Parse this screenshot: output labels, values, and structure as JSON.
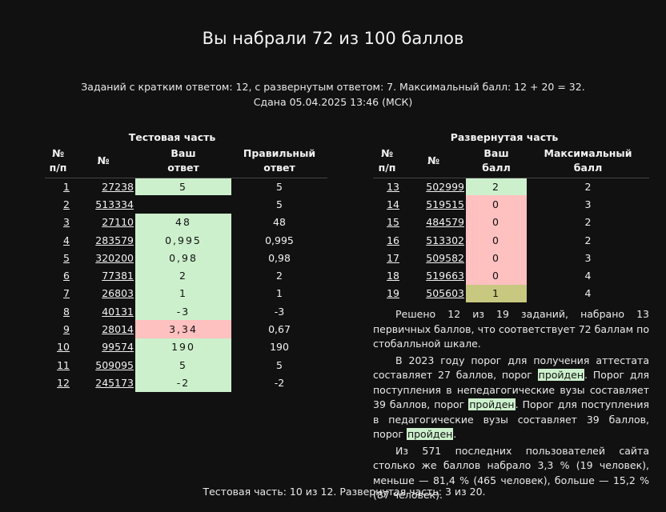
{
  "title": "Вы набрали 72 из 100 баллов",
  "summary_line1": "Заданий с кратким ответом: 12, с развернутым ответом: 7. Максимальный балл: 12 + 20 = 32.",
  "summary_line2": "Сдана 05.04.2025 13:46 (МСК)",
  "test_part": {
    "title": "Тестовая часть",
    "headers": {
      "num": "№ п/п",
      "id": "№",
      "answer": "Ваш ответ",
      "correct": "Правильный ответ"
    },
    "rows": [
      {
        "num": "1",
        "id": "27238",
        "answer": "5",
        "correct": "5",
        "status": "green"
      },
      {
        "num": "2",
        "id": "513334",
        "answer": "",
        "correct": "5",
        "status": "none"
      },
      {
        "num": "3",
        "id": "27110",
        "answer": "48",
        "correct": "48",
        "status": "green"
      },
      {
        "num": "4",
        "id": "283579",
        "answer": "0,995",
        "correct": "0,995",
        "status": "green"
      },
      {
        "num": "5",
        "id": "320200",
        "answer": "0,98",
        "correct": "0,98",
        "status": "green"
      },
      {
        "num": "6",
        "id": "77381",
        "answer": "2",
        "correct": "2",
        "status": "green"
      },
      {
        "num": "7",
        "id": "26803",
        "answer": "1",
        "correct": "1",
        "status": "green"
      },
      {
        "num": "8",
        "id": "40131",
        "answer": "-3",
        "correct": "-3",
        "status": "green"
      },
      {
        "num": "9",
        "id": "28014",
        "answer": "3,34",
        "correct": "0,67",
        "status": "red"
      },
      {
        "num": "10",
        "id": "99574",
        "answer": "190",
        "correct": "190",
        "status": "green"
      },
      {
        "num": "11",
        "id": "509095",
        "answer": "5",
        "correct": "5",
        "status": "green"
      },
      {
        "num": "12",
        "id": "245173",
        "answer": "-2",
        "correct": "-2",
        "status": "green"
      }
    ]
  },
  "extended_part": {
    "title": "Развернутая часть",
    "headers": {
      "num": "№ п/п",
      "id": "№",
      "score": "Ваш балл",
      "max": "Максимальный балл"
    },
    "rows": [
      {
        "num": "13",
        "id": "502999",
        "score": "2",
        "max": "2",
        "status": "green"
      },
      {
        "num": "14",
        "id": "519515",
        "score": "0",
        "max": "3",
        "status": "red"
      },
      {
        "num": "15",
        "id": "484579",
        "score": "0",
        "max": "2",
        "status": "red"
      },
      {
        "num": "16",
        "id": "513302",
        "score": "0",
        "max": "2",
        "status": "red"
      },
      {
        "num": "17",
        "id": "509582",
        "score": "0",
        "max": "3",
        "status": "red"
      },
      {
        "num": "18",
        "id": "519663",
        "score": "0",
        "max": "4",
        "status": "red"
      },
      {
        "num": "19",
        "id": "505603",
        "score": "1",
        "max": "4",
        "status": "olive"
      }
    ]
  },
  "description": {
    "p1": "Решено 12 из 19 заданий, набрано 13 первичных баллов, что соответствует 72 баллам по стобалльной шкале.",
    "p2_a": "В 2023 году порог для получения аттестата составляет 27 баллов, порог ",
    "p2_b": ". Порог для поступления в непедагогические вузы составляет 39 баллов, порог ",
    "p2_c": ". Порог для поступления в педагогические вузы составляет 39 баллов, порог ",
    "p2_d": ".",
    "passed": "пройден",
    "p3": "Из 571 последних пользователей сайта столько же баллов набрало 3,3 % (19 человек), меньше — 81,4 % (465 человек), больше — 15,2 % (87 человек)."
  },
  "footer": "Тестовая часть: 10 из 12. Развернутая часть: 3 из 20."
}
